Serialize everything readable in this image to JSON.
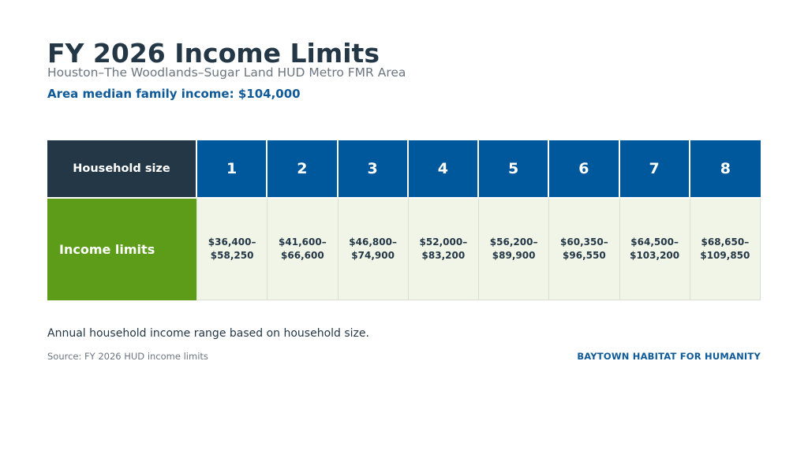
{
  "header": {
    "title": "FY 2026 Income Limits",
    "subtitle": "Houston–The Woodlands–Sugar Land HUD Metro FMR Area",
    "median_income": "Area median family income: $104,000"
  },
  "table": {
    "header_label": "Household size",
    "row_label": "Income limits",
    "columns": [
      {
        "size": "1",
        "line1": "$36,400–",
        "line2": "$58,250"
      },
      {
        "size": "2",
        "line1": "$41,600–",
        "line2": "$66,600"
      },
      {
        "size": "3",
        "line1": "$46,800–",
        "line2": "$74,900"
      },
      {
        "size": "4",
        "line1": "$52,000–",
        "line2": "$83,200"
      },
      {
        "size": "5",
        "line1": "$56,200–",
        "line2": "$89,900"
      },
      {
        "size": "6",
        "line1": "$60,350–",
        "line2": "$96,550"
      },
      {
        "size": "7",
        "line1": "$64,500–",
        "line2": "$103,200"
      },
      {
        "size": "8",
        "line1": "$68,650–",
        "line2": "$109,850"
      }
    ]
  },
  "footer": {
    "note": "Annual household income range based on household size.",
    "source": "Source: FY 2026 HUD income limits",
    "brand": "BAYTOWN HABITAT FOR HUMANITY"
  },
  "colors": {
    "title": "#243746",
    "accent_blue": "#00589c",
    "accent_green": "#5c9c18",
    "cell_background": "#f0f5e8"
  }
}
